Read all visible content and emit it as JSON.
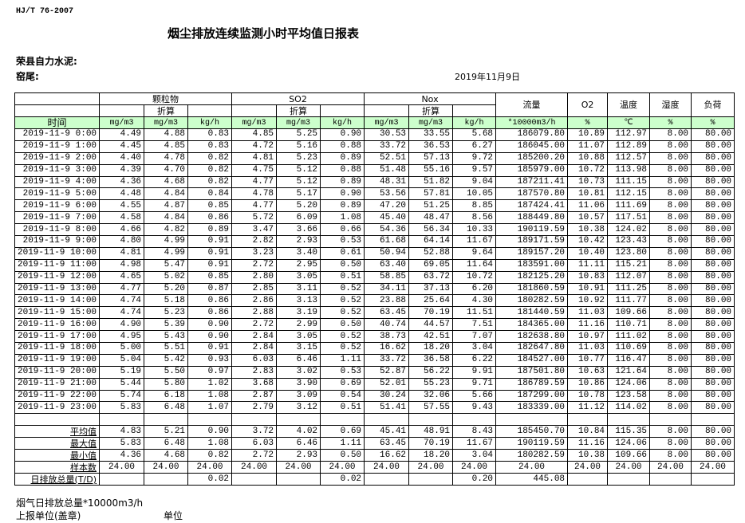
{
  "standard": "HJ/T  76-2007",
  "title": "烟尘排放连续监测小时平均值日报表",
  "company": "荣县自力水泥:",
  "kiln": "窑尾:",
  "date": "2019年11月9日",
  "header": {
    "group1": "颗粒物",
    "group2": "SO2",
    "group3": "Nox",
    "converted": "折算",
    "flow": "流量",
    "o2": "O2",
    "temp": "温度",
    "humidity": "湿度",
    "load": "负荷",
    "time": "时间",
    "units": [
      "mg/m3",
      "mg/m3",
      "kg/h",
      "mg/m3",
      "mg/m3",
      "kg/h",
      "mg/m3",
      "mg/m3",
      "kg/h",
      "*10000m3/h",
      "%",
      "℃",
      "%",
      "%"
    ]
  },
  "rows": [
    [
      "2019-11-9 0:00",
      "4.49",
      "4.88",
      "0.83",
      "4.85",
      "5.25",
      "0.90",
      "30.53",
      "33.55",
      "5.68",
      "186079.80",
      "10.89",
      "112.97",
      "8.00",
      "80.00"
    ],
    [
      "2019-11-9 1:00",
      "4.45",
      "4.85",
      "0.83",
      "4.72",
      "5.16",
      "0.88",
      "33.72",
      "36.53",
      "6.27",
      "186045.00",
      "11.07",
      "112.89",
      "8.00",
      "80.00"
    ],
    [
      "2019-11-9 2:00",
      "4.40",
      "4.78",
      "0.82",
      "4.81",
      "5.23",
      "0.89",
      "52.51",
      "57.13",
      "9.72",
      "185200.20",
      "10.88",
      "112.57",
      "8.00",
      "80.00"
    ],
    [
      "2019-11-9 3:00",
      "4.39",
      "4.70",
      "0.82",
      "4.75",
      "5.12",
      "0.88",
      "51.48",
      "55.16",
      "9.57",
      "185979.00",
      "10.72",
      "113.98",
      "8.00",
      "80.00"
    ],
    [
      "2019-11-9 4:00",
      "4.36",
      "4.68",
      "0.82",
      "4.77",
      "5.12",
      "0.89",
      "48.31",
      "51.82",
      "9.04",
      "187211.41",
      "10.73",
      "111.15",
      "8.00",
      "80.00"
    ],
    [
      "2019-11-9 5:00",
      "4.48",
      "4.84",
      "0.84",
      "4.78",
      "5.17",
      "0.90",
      "53.56",
      "57.81",
      "10.05",
      "187570.80",
      "10.81",
      "112.15",
      "8.00",
      "80.00"
    ],
    [
      "2019-11-9 6:00",
      "4.55",
      "4.87",
      "0.85",
      "4.77",
      "5.20",
      "0.89",
      "47.20",
      "51.25",
      "8.85",
      "187424.41",
      "11.06",
      "111.69",
      "8.00",
      "80.00"
    ],
    [
      "2019-11-9 7:00",
      "4.58",
      "4.84",
      "0.86",
      "5.72",
      "6.09",
      "1.08",
      "45.40",
      "48.47",
      "8.56",
      "188449.80",
      "10.57",
      "117.51",
      "8.00",
      "80.00"
    ],
    [
      "2019-11-9 8:00",
      "4.66",
      "4.82",
      "0.89",
      "3.47",
      "3.66",
      "0.66",
      "54.36",
      "56.34",
      "10.33",
      "190119.59",
      "10.38",
      "124.02",
      "8.00",
      "80.00"
    ],
    [
      "2019-11-9 9:00",
      "4.80",
      "4.99",
      "0.91",
      "2.82",
      "2.93",
      "0.53",
      "61.68",
      "64.14",
      "11.67",
      "189171.59",
      "10.42",
      "123.43",
      "8.00",
      "80.00"
    ],
    [
      "2019-11-9 10:00",
      "4.81",
      "4.99",
      "0.91",
      "3.23",
      "3.40",
      "0.61",
      "50.94",
      "52.88",
      "9.64",
      "189157.20",
      "10.40",
      "123.80",
      "8.00",
      "80.00"
    ],
    [
      "2019-11-9 11:00",
      "4.98",
      "5.47",
      "0.91",
      "2.72",
      "2.95",
      "0.50",
      "63.40",
      "69.05",
      "11.64",
      "183591.00",
      "11.11",
      "115.21",
      "8.00",
      "80.00"
    ],
    [
      "2019-11-9 12:00",
      "4.65",
      "5.02",
      "0.85",
      "2.80",
      "3.05",
      "0.51",
      "58.85",
      "63.72",
      "10.72",
      "182125.20",
      "10.83",
      "112.07",
      "8.00",
      "80.00"
    ],
    [
      "2019-11-9 13:00",
      "4.77",
      "5.20",
      "0.87",
      "2.85",
      "3.11",
      "0.52",
      "34.11",
      "37.13",
      "6.20",
      "181860.59",
      "10.91",
      "111.25",
      "8.00",
      "80.00"
    ],
    [
      "2019-11-9 14:00",
      "4.74",
      "5.18",
      "0.86",
      "2.86",
      "3.13",
      "0.52",
      "23.88",
      "25.64",
      "4.30",
      "180282.59",
      "10.92",
      "111.77",
      "8.00",
      "80.00"
    ],
    [
      "2019-11-9 15:00",
      "4.74",
      "5.23",
      "0.86",
      "2.88",
      "3.19",
      "0.52",
      "63.45",
      "70.19",
      "11.51",
      "181440.59",
      "11.03",
      "109.66",
      "8.00",
      "80.00"
    ],
    [
      "2019-11-9 16:00",
      "4.90",
      "5.39",
      "0.90",
      "2.72",
      "2.99",
      "0.50",
      "40.74",
      "44.57",
      "7.51",
      "184365.00",
      "11.16",
      "110.71",
      "8.00",
      "80.00"
    ],
    [
      "2019-11-9 17:00",
      "4.95",
      "5.43",
      "0.90",
      "2.84",
      "3.05",
      "0.52",
      "38.73",
      "42.51",
      "7.07",
      "182638.80",
      "10.97",
      "111.02",
      "8.00",
      "80.00"
    ],
    [
      "2019-11-9 18:00",
      "5.00",
      "5.51",
      "0.91",
      "2.84",
      "3.15",
      "0.52",
      "16.62",
      "18.20",
      "3.04",
      "182647.80",
      "11.03",
      "110.69",
      "8.00",
      "80.00"
    ],
    [
      "2019-11-9 19:00",
      "5.04",
      "5.42",
      "0.93",
      "6.03",
      "6.46",
      "1.11",
      "33.72",
      "36.58",
      "6.22",
      "184527.00",
      "10.77",
      "116.47",
      "8.00",
      "80.00"
    ],
    [
      "2019-11-9 20:00",
      "5.19",
      "5.50",
      "0.97",
      "2.83",
      "3.02",
      "0.53",
      "52.87",
      "56.22",
      "9.91",
      "187501.80",
      "10.63",
      "121.64",
      "8.00",
      "80.00"
    ],
    [
      "2019-11-9 21:00",
      "5.44",
      "5.80",
      "1.02",
      "3.68",
      "3.90",
      "0.69",
      "52.01",
      "55.23",
      "9.71",
      "186789.59",
      "10.86",
      "124.06",
      "8.00",
      "80.00"
    ],
    [
      "2019-11-9 22:00",
      "5.74",
      "6.18",
      "1.08",
      "2.87",
      "3.09",
      "0.54",
      "30.24",
      "32.06",
      "5.66",
      "187299.00",
      "10.78",
      "123.58",
      "8.00",
      "80.00"
    ],
    [
      "2019-11-9 23:00",
      "5.83",
      "6.48",
      "1.07",
      "2.79",
      "3.12",
      "0.51",
      "51.41",
      "57.55",
      "9.43",
      "183339.00",
      "11.12",
      "114.02",
      "8.00",
      "80.00"
    ]
  ],
  "stats": [
    [
      "平均值",
      "4.83",
      "5.21",
      "0.90",
      "3.72",
      "4.02",
      "0.69",
      "45.41",
      "48.91",
      "8.43",
      "185450.70",
      "10.84",
      "115.35",
      "8.00",
      "80.00"
    ],
    [
      "最大值",
      "5.83",
      "6.48",
      "1.08",
      "6.03",
      "6.46",
      "1.11",
      "63.45",
      "70.19",
      "11.67",
      "190119.59",
      "11.16",
      "124.06",
      "8.00",
      "80.00"
    ],
    [
      "最小值",
      "4.36",
      "4.68",
      "0.82",
      "2.72",
      "2.93",
      "0.50",
      "16.62",
      "18.20",
      "3.04",
      "180282.59",
      "10.38",
      "109.66",
      "8.00",
      "80.00"
    ],
    [
      "样本数",
      "24.00",
      "24.00",
      "24.00",
      "24.00",
      "24.00",
      "24.00",
      "24.00",
      "24.00",
      "24.00",
      "24.00",
      "24.00",
      "24.00",
      "24.00",
      "24.00"
    ]
  ],
  "total": [
    "日排放总量(T/D)",
    "",
    "",
    "0.02",
    "",
    "",
    "0.02",
    "",
    "",
    "0.20",
    "445.08",
    "",
    "",
    "",
    ""
  ],
  "footer": {
    "flue_total": "烟气日排放总量*10000m3/h",
    "reporter": "上报单位(盖章)",
    "unit": "单位"
  },
  "colors": {
    "header_bg": "#ccffcc"
  }
}
